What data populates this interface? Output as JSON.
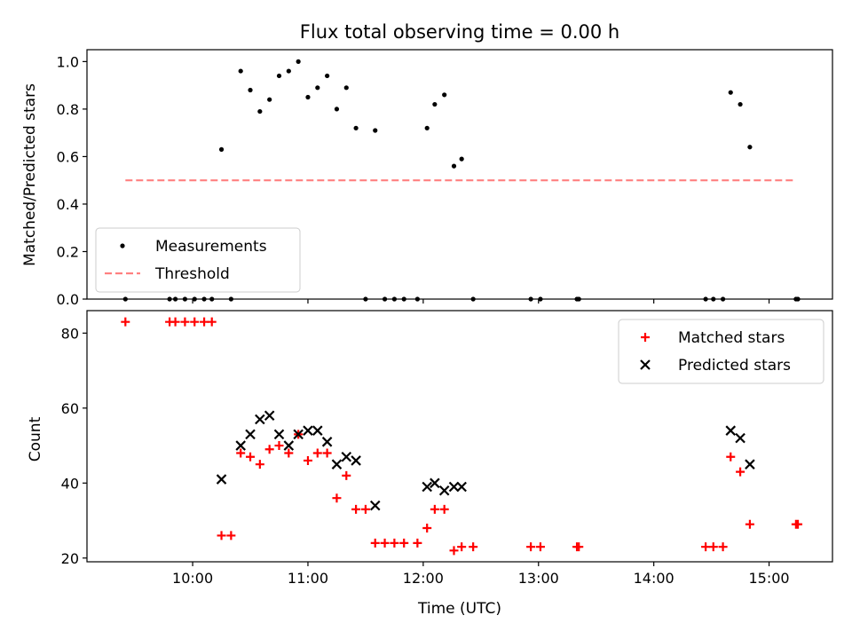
{
  "chart_data": [
    {
      "type": "scatter",
      "title": "Flux total observing time = 0.00 h",
      "xlabel": "",
      "ylabel": "Matched/Predicted stars",
      "ylim": [
        0,
        1.05
      ],
      "yticks": [
        "0.0",
        "0.2",
        "0.4",
        "0.6",
        "0.8",
        "1.0"
      ],
      "xlim": [
        "09:05",
        "15:33"
      ],
      "xticks": [
        "10:00",
        "11:00",
        "12:00",
        "13:00",
        "14:00",
        "15:00"
      ],
      "show_xtick_labels": false,
      "grid": false,
      "legend_position": "lower-left",
      "series": [
        {
          "name": "Measurements",
          "kind": "scatter-dot",
          "color": "#000000",
          "points": [
            [
              "09:25",
              0.0
            ],
            [
              "09:48",
              0.0
            ],
            [
              "09:51",
              0.0
            ],
            [
              "09:56",
              0.0
            ],
            [
              "10:01",
              0.0
            ],
            [
              "10:06",
              0.0
            ],
            [
              "10:10",
              0.0
            ],
            [
              "10:15",
              0.63
            ],
            [
              "10:20",
              0.0
            ],
            [
              "10:25",
              0.96
            ],
            [
              "10:30",
              0.88
            ],
            [
              "10:35",
              0.79
            ],
            [
              "10:40",
              0.84
            ],
            [
              "10:45",
              0.94
            ],
            [
              "10:50",
              0.96
            ],
            [
              "10:55",
              1.0
            ],
            [
              "11:00",
              0.85
            ],
            [
              "11:05",
              0.89
            ],
            [
              "11:10",
              0.94
            ],
            [
              "11:15",
              0.8
            ],
            [
              "11:20",
              0.89
            ],
            [
              "11:25",
              0.72
            ],
            [
              "11:30",
              0.0
            ],
            [
              "11:35",
              0.71
            ],
            [
              "11:40",
              0.0
            ],
            [
              "11:45",
              0.0
            ],
            [
              "11:50",
              0.0
            ],
            [
              "11:57",
              0.0
            ],
            [
              "12:02",
              0.72
            ],
            [
              "12:06",
              0.82
            ],
            [
              "12:11",
              0.86
            ],
            [
              "12:16",
              0.56
            ],
            [
              "12:20",
              0.59
            ],
            [
              "12:26",
              0.0
            ],
            [
              "12:56",
              0.0
            ],
            [
              "13:01",
              0.0
            ],
            [
              "13:20",
              0.0
            ],
            [
              "13:21",
              0.0
            ],
            [
              "14:27",
              0.0
            ],
            [
              "14:31",
              0.0
            ],
            [
              "14:36",
              0.0
            ],
            [
              "14:40",
              0.87
            ],
            [
              "14:45",
              0.82
            ],
            [
              "14:50",
              0.64
            ],
            [
              "15:14",
              0.0
            ],
            [
              "15:15",
              0.0
            ]
          ]
        },
        {
          "name": "Threshold",
          "kind": "dashed-line",
          "color": "#ff8080",
          "points": [
            [
              "09:25",
              0.5
            ],
            [
              "15:14",
              0.5
            ]
          ]
        }
      ]
    },
    {
      "type": "scatter",
      "title": "",
      "xlabel": "Time (UTC)",
      "ylabel": "Count",
      "ylim": [
        19,
        86
      ],
      "yticks": [
        "20",
        "40",
        "60",
        "80"
      ],
      "xlim": [
        "09:05",
        "15:33"
      ],
      "xticks": [
        "10:00",
        "11:00",
        "12:00",
        "13:00",
        "14:00",
        "15:00"
      ],
      "show_xtick_labels": true,
      "grid": false,
      "legend_position": "upper-right",
      "series": [
        {
          "name": "Matched stars",
          "kind": "plus",
          "color": "#ff0000",
          "points": [
            [
              "09:25",
              83
            ],
            [
              "09:48",
              83
            ],
            [
              "09:51",
              83
            ],
            [
              "09:56",
              83
            ],
            [
              "10:01",
              83
            ],
            [
              "10:06",
              83
            ],
            [
              "10:10",
              83
            ],
            [
              "10:15",
              26
            ],
            [
              "10:20",
              26
            ],
            [
              "10:25",
              48
            ],
            [
              "10:30",
              47
            ],
            [
              "10:35",
              45
            ],
            [
              "10:40",
              49
            ],
            [
              "10:45",
              50
            ],
            [
              "10:50",
              48
            ],
            [
              "10:55",
              53
            ],
            [
              "11:00",
              46
            ],
            [
              "11:05",
              48
            ],
            [
              "11:10",
              48
            ],
            [
              "11:15",
              36
            ],
            [
              "11:20",
              42
            ],
            [
              "11:25",
              33
            ],
            [
              "11:30",
              33
            ],
            [
              "11:35",
              24
            ],
            [
              "11:40",
              24
            ],
            [
              "11:45",
              24
            ],
            [
              "11:50",
              24
            ],
            [
              "11:57",
              24
            ],
            [
              "12:02",
              28
            ],
            [
              "12:06",
              33
            ],
            [
              "12:11",
              33
            ],
            [
              "12:16",
              22
            ],
            [
              "12:20",
              23
            ],
            [
              "12:26",
              23
            ],
            [
              "12:56",
              23
            ],
            [
              "13:01",
              23
            ],
            [
              "13:20",
              23
            ],
            [
              "13:21",
              23
            ],
            [
              "14:27",
              23
            ],
            [
              "14:31",
              23
            ],
            [
              "14:36",
              23
            ],
            [
              "14:40",
              47
            ],
            [
              "14:45",
              43
            ],
            [
              "14:50",
              29
            ],
            [
              "15:14",
              29
            ],
            [
              "15:15",
              29
            ]
          ]
        },
        {
          "name": "Predicted stars",
          "kind": "cross",
          "color": "#000000",
          "points": [
            [
              "10:15",
              41
            ],
            [
              "10:25",
              50
            ],
            [
              "10:30",
              53
            ],
            [
              "10:35",
              57
            ],
            [
              "10:40",
              58
            ],
            [
              "10:45",
              53
            ],
            [
              "10:50",
              50
            ],
            [
              "10:55",
              53
            ],
            [
              "11:00",
              54
            ],
            [
              "11:05",
              54
            ],
            [
              "11:10",
              51
            ],
            [
              "11:15",
              45
            ],
            [
              "11:20",
              47
            ],
            [
              "11:25",
              46
            ],
            [
              "11:35",
              34
            ],
            [
              "12:02",
              39
            ],
            [
              "12:06",
              40
            ],
            [
              "12:11",
              38
            ],
            [
              "12:16",
              39
            ],
            [
              "12:20",
              39
            ],
            [
              "14:40",
              54
            ],
            [
              "14:45",
              52
            ],
            [
              "14:50",
              45
            ]
          ]
        }
      ]
    }
  ]
}
